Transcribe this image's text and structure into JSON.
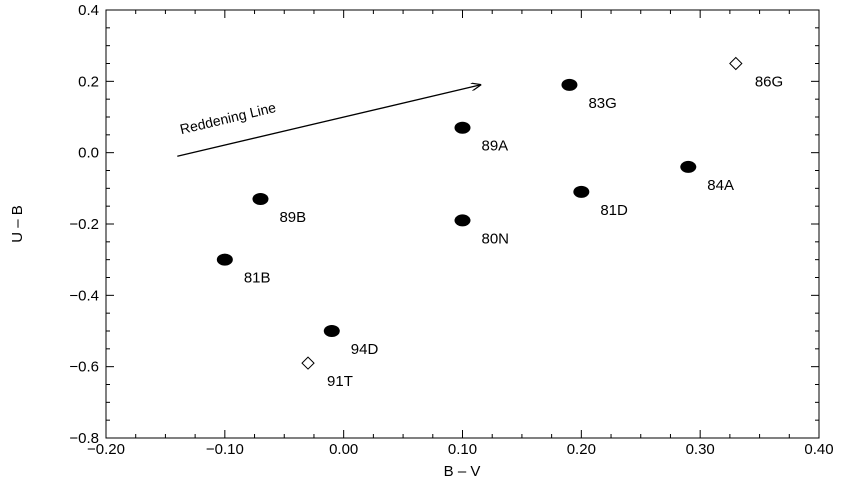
{
  "chart_data": {
    "type": "scatter",
    "xlabel": "B – V",
    "ylabel": "U – B",
    "xlim": [
      -0.2,
      0.4
    ],
    "ylim": [
      -0.8,
      0.4
    ],
    "x_ticks": [
      -0.2,
      -0.1,
      0.0,
      0.1,
      0.2,
      0.3,
      0.4
    ],
    "x_tick_labels": [
      "−0.20",
      "−0.10",
      "0.00",
      "0.10",
      "0.20",
      "0.30",
      "0.40"
    ],
    "y_ticks": [
      -0.8,
      -0.6,
      -0.4,
      -0.2,
      0.0,
      0.2,
      0.4
    ],
    "y_tick_labels": [
      "−0.8",
      "−0.6",
      "−0.4",
      "−0.2",
      "0.0",
      "0.2",
      "0.4"
    ],
    "grid": false,
    "legend": "none",
    "points": [
      {
        "label": "83G",
        "x": 0.19,
        "y": 0.19,
        "marker": "filled-circle"
      },
      {
        "label": "86G",
        "x": 0.33,
        "y": 0.25,
        "marker": "open-diamond"
      },
      {
        "label": "89A",
        "x": 0.1,
        "y": 0.07,
        "marker": "filled-circle"
      },
      {
        "label": "84A",
        "x": 0.29,
        "y": -0.04,
        "marker": "filled-circle"
      },
      {
        "label": "81D",
        "x": 0.2,
        "y": -0.11,
        "marker": "filled-circle"
      },
      {
        "label": "89B",
        "x": -0.07,
        "y": -0.13,
        "marker": "filled-circle"
      },
      {
        "label": "80N",
        "x": 0.1,
        "y": -0.19,
        "marker": "filled-circle"
      },
      {
        "label": "81B",
        "x": -0.1,
        "y": -0.3,
        "marker": "filled-circle"
      },
      {
        "label": "94D",
        "x": -0.01,
        "y": -0.5,
        "marker": "filled-circle"
      },
      {
        "label": "91T",
        "x": -0.03,
        "y": -0.59,
        "marker": "open-diamond"
      }
    ],
    "annotation": {
      "text": "Reddening Line",
      "arrow_from": [
        -0.14,
        -0.01
      ],
      "arrow_to": [
        0.115,
        0.19
      ]
    },
    "colors": {
      "marker": "#000000",
      "axes": "#000000",
      "background": "#ffffff"
    }
  }
}
